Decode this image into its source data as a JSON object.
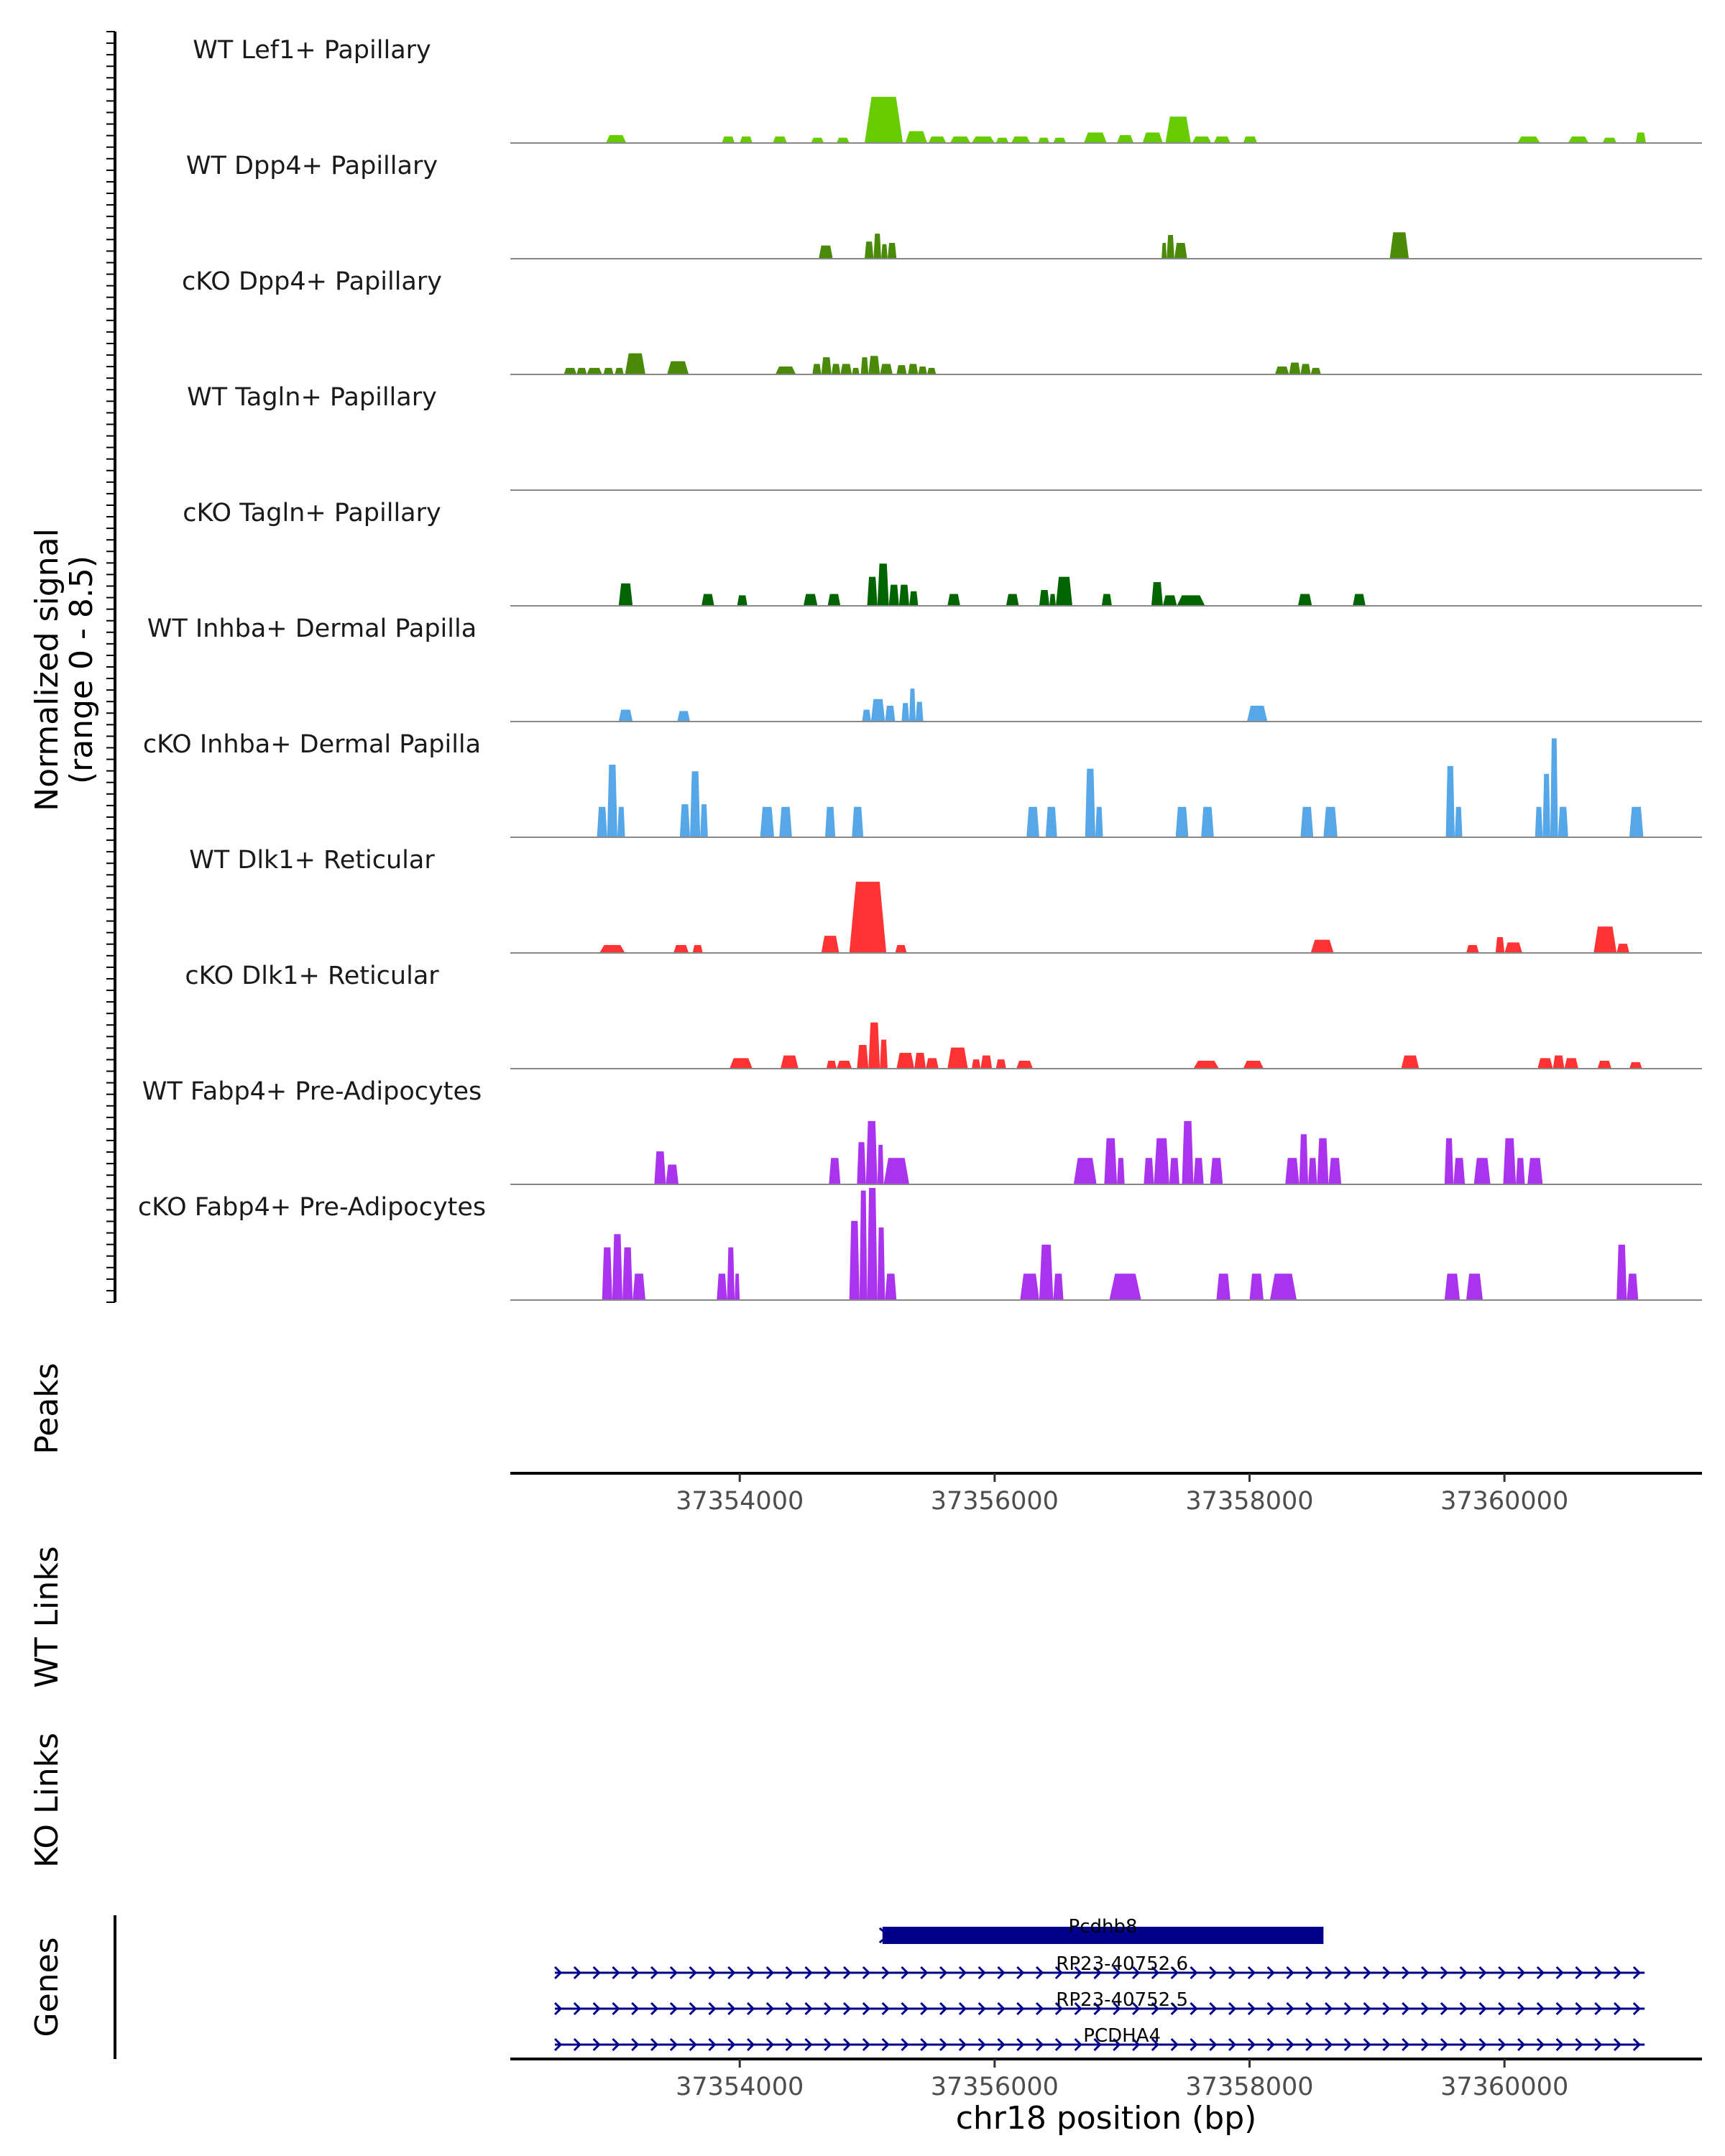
{
  "chart_data": {
    "type": "area",
    "title": "",
    "ylabel": "Normalized signal",
    "ylabel_range": "(range 0 - 8.5)",
    "ylim": [
      0,
      8.5
    ],
    "xlabel": "chr18 position (bp)",
    "xlim": [
      37352200,
      37361550
    ],
    "x_ticks": [
      37354000,
      37356000,
      37358000,
      37360000
    ],
    "x_tick_labels": [
      "37354000",
      "37356000",
      "37358000",
      "37360000"
    ],
    "side_labels": {
      "peaks": "Peaks",
      "wt_links": "WT Links",
      "ko_links": "KO Links",
      "genes": "Genes"
    },
    "series": [
      {
        "name": "WT Lef1+ Papillary",
        "color": "#66CC00",
        "peaks": [
          [
            37352950,
            37353110,
            0.6
          ],
          [
            37353860,
            37353960,
            0.5
          ],
          [
            37354000,
            37354100,
            0.5
          ],
          [
            37354260,
            37354370,
            0.5
          ],
          [
            37354560,
            37354660,
            0.4
          ],
          [
            37354760,
            37354860,
            0.4
          ],
          [
            37354980,
            37355280,
            3.5
          ],
          [
            37355300,
            37355470,
            0.9
          ],
          [
            37355480,
            37355620,
            0.5
          ],
          [
            37355650,
            37355810,
            0.5
          ],
          [
            37355820,
            37356000,
            0.5
          ],
          [
            37356010,
            37356110,
            0.4
          ],
          [
            37356130,
            37356280,
            0.5
          ],
          [
            37356340,
            37356430,
            0.4
          ],
          [
            37356460,
            37356560,
            0.4
          ],
          [
            37356700,
            37356880,
            0.8
          ],
          [
            37356960,
            37357090,
            0.6
          ],
          [
            37357160,
            37357320,
            0.8
          ],
          [
            37357340,
            37357540,
            2.0
          ],
          [
            37357550,
            37357700,
            0.5
          ],
          [
            37357720,
            37357850,
            0.5
          ],
          [
            37357950,
            37358060,
            0.5
          ],
          [
            37360100,
            37360280,
            0.5
          ],
          [
            37360500,
            37360660,
            0.5
          ],
          [
            37360770,
            37360880,
            0.4
          ],
          [
            37361030,
            37361110,
            0.8
          ]
        ]
      },
      {
        "name": "WT Dpp4+ Papillary",
        "color": "#4A8A08",
        "peaks": [
          [
            37354620,
            37354730,
            1.0
          ],
          [
            37354980,
            37355050,
            1.3
          ],
          [
            37355050,
            37355110,
            1.9
          ],
          [
            37355110,
            37355160,
            1.1
          ],
          [
            37355160,
            37355230,
            1.2
          ],
          [
            37357310,
            37357350,
            1.2
          ],
          [
            37357350,
            37357410,
            1.8
          ],
          [
            37357410,
            37357510,
            1.2
          ],
          [
            37359100,
            37359250,
            2.0
          ]
        ]
      },
      {
        "name": "cKO Dpp4+ Papillary",
        "color": "#4A8A08",
        "peaks": [
          [
            37352620,
            37352720,
            0.5
          ],
          [
            37352720,
            37352800,
            0.5
          ],
          [
            37352800,
            37352920,
            0.5
          ],
          [
            37352930,
            37353010,
            0.5
          ],
          [
            37353020,
            37353090,
            0.5
          ],
          [
            37353100,
            37353260,
            1.6
          ],
          [
            37353430,
            37353600,
            1.0
          ],
          [
            37354280,
            37354440,
            0.6
          ],
          [
            37354570,
            37354640,
            0.8
          ],
          [
            37354640,
            37354720,
            1.3
          ],
          [
            37354720,
            37354790,
            0.8
          ],
          [
            37354790,
            37354880,
            0.8
          ],
          [
            37354880,
            37354940,
            0.5
          ],
          [
            37354950,
            37355010,
            1.3
          ],
          [
            37355010,
            37355100,
            1.4
          ],
          [
            37355100,
            37355200,
            0.8
          ],
          [
            37355230,
            37355310,
            0.7
          ],
          [
            37355320,
            37355400,
            0.8
          ],
          [
            37355400,
            37355470,
            0.6
          ],
          [
            37355470,
            37355540,
            0.5
          ],
          [
            37358200,
            37358310,
            0.6
          ],
          [
            37358310,
            37358400,
            0.9
          ],
          [
            37358400,
            37358480,
            0.8
          ],
          [
            37358480,
            37358560,
            0.5
          ]
        ]
      },
      {
        "name": "WT Tagln+ Papillary",
        "color": "#2F6B0F",
        "peaks": []
      },
      {
        "name": "cKO Tagln+ Papillary",
        "color": "#006400",
        "peaks": [
          [
            37353050,
            37353160,
            1.7
          ],
          [
            37353700,
            37353800,
            0.9
          ],
          [
            37353980,
            37354060,
            0.8
          ],
          [
            37354500,
            37354610,
            0.9
          ],
          [
            37354690,
            37354790,
            0.9
          ],
          [
            37355000,
            37355080,
            2.2
          ],
          [
            37355080,
            37355170,
            3.2
          ],
          [
            37355170,
            37355250,
            1.6
          ],
          [
            37355250,
            37355330,
            1.6
          ],
          [
            37355330,
            37355400,
            1.1
          ],
          [
            37355630,
            37355730,
            0.9
          ],
          [
            37356090,
            37356190,
            0.9
          ],
          [
            37356350,
            37356430,
            1.2
          ],
          [
            37356430,
            37356480,
            0.9
          ],
          [
            37356480,
            37356610,
            2.2
          ],
          [
            37356840,
            37356920,
            0.9
          ],
          [
            37357230,
            37357320,
            1.8
          ],
          [
            37357320,
            37357430,
            0.8
          ],
          [
            37357430,
            37357650,
            0.8
          ],
          [
            37358380,
            37358490,
            0.9
          ],
          [
            37358810,
            37358910,
            0.9
          ]
        ]
      },
      {
        "name": "WT Inhba+ Dermal Papilla",
        "color": "#56A7E8",
        "peaks": [
          [
            37353050,
            37353160,
            0.9
          ],
          [
            37353510,
            37353610,
            0.8
          ],
          [
            37354960,
            37355030,
            0.9
          ],
          [
            37355030,
            37355140,
            1.7
          ],
          [
            37355140,
            37355220,
            1.2
          ],
          [
            37355270,
            37355330,
            1.4
          ],
          [
            37355330,
            37355380,
            2.5
          ],
          [
            37355380,
            37355440,
            1.5
          ],
          [
            37357980,
            37358140,
            1.2
          ]
        ]
      },
      {
        "name": "cKO Inhba+ Dermal Papilla",
        "color": "#56A7E8",
        "peaks": [
          [
            37352880,
            37352960,
            2.3
          ],
          [
            37352960,
            37353040,
            5.5
          ],
          [
            37353040,
            37353100,
            2.3
          ],
          [
            37353530,
            37353610,
            2.5
          ],
          [
            37353610,
            37353690,
            5.0
          ],
          [
            37353690,
            37353750,
            2.5
          ],
          [
            37354160,
            37354270,
            2.3
          ],
          [
            37354310,
            37354410,
            2.3
          ],
          [
            37354670,
            37354750,
            2.3
          ],
          [
            37354880,
            37354970,
            2.3
          ],
          [
            37356250,
            37356350,
            2.3
          ],
          [
            37356400,
            37356490,
            2.3
          ],
          [
            37356710,
            37356790,
            5.2
          ],
          [
            37356790,
            37356850,
            2.3
          ],
          [
            37357420,
            37357520,
            2.3
          ],
          [
            37357620,
            37357720,
            2.3
          ],
          [
            37358400,
            37358500,
            2.3
          ],
          [
            37358580,
            37358690,
            2.3
          ],
          [
            37359540,
            37359610,
            5.4
          ],
          [
            37359610,
            37359670,
            2.3
          ],
          [
            37360240,
            37360300,
            2.3
          ],
          [
            37360300,
            37360360,
            4.8
          ],
          [
            37360360,
            37360420,
            7.5
          ],
          [
            37360420,
            37360500,
            2.3
          ],
          [
            37360980,
            37361090,
            2.3
          ]
        ]
      },
      {
        "name": "WT Dlk1+ Reticular",
        "color": "#FF3333",
        "peaks": [
          [
            37352900,
            37353100,
            0.6
          ],
          [
            37353480,
            37353600,
            0.6
          ],
          [
            37353630,
            37353710,
            0.6
          ],
          [
            37354640,
            37354780,
            1.3
          ],
          [
            37354860,
            37355150,
            5.4
          ],
          [
            37355220,
            37355310,
            0.6
          ],
          [
            37358480,
            37358660,
            1.0
          ],
          [
            37359700,
            37359800,
            0.6
          ],
          [
            37359930,
            37360000,
            1.2
          ],
          [
            37360000,
            37360140,
            0.8
          ],
          [
            37360700,
            37360880,
            2.0
          ],
          [
            37360880,
            37360980,
            0.7
          ]
        ]
      },
      {
        "name": "cKO Dlk1+ Reticular",
        "color": "#FF3333",
        "peaks": [
          [
            37353920,
            37354100,
            0.8
          ],
          [
            37354320,
            37354460,
            1.0
          ],
          [
            37354680,
            37354760,
            0.6
          ],
          [
            37354760,
            37354880,
            0.6
          ],
          [
            37354920,
            37355010,
            1.8
          ],
          [
            37355010,
            37355100,
            3.5
          ],
          [
            37355100,
            37355160,
            2.2
          ],
          [
            37355230,
            37355370,
            1.2
          ],
          [
            37355370,
            37355460,
            1.2
          ],
          [
            37355460,
            37355560,
            0.8
          ],
          [
            37355630,
            37355790,
            1.6
          ],
          [
            37355820,
            37355890,
            0.7
          ],
          [
            37355890,
            37355980,
            1.0
          ],
          [
            37356010,
            37356090,
            0.7
          ],
          [
            37356170,
            37356300,
            0.6
          ],
          [
            37357560,
            37357760,
            0.6
          ],
          [
            37357950,
            37358110,
            0.6
          ],
          [
            37359190,
            37359330,
            1.0
          ],
          [
            37360260,
            37360380,
            0.8
          ],
          [
            37360380,
            37360470,
            1.0
          ],
          [
            37360470,
            37360580,
            0.8
          ],
          [
            37360730,
            37360840,
            0.6
          ],
          [
            37360980,
            37361080,
            0.5
          ]
        ]
      },
      {
        "name": "WT Fabp4+ Pre-Adipocytes",
        "color": "#AA33EE",
        "peaks": [
          [
            37353330,
            37353420,
            2.5
          ],
          [
            37353420,
            37353520,
            1.5
          ],
          [
            37354700,
            37354790,
            2.0
          ],
          [
            37354920,
            37354990,
            3.2
          ],
          [
            37354990,
            37355080,
            4.8
          ],
          [
            37355080,
            37355130,
            3.0
          ],
          [
            37355130,
            37355330,
            2.0
          ],
          [
            37356620,
            37356800,
            2.0
          ],
          [
            37356860,
            37356960,
            3.5
          ],
          [
            37356960,
            37357020,
            2.0
          ],
          [
            37357170,
            37357250,
            2.0
          ],
          [
            37357250,
            37357370,
            3.5
          ],
          [
            37357370,
            37357450,
            2.0
          ],
          [
            37357470,
            37357560,
            4.8
          ],
          [
            37357560,
            37357640,
            2.0
          ],
          [
            37357690,
            37357790,
            2.0
          ],
          [
            37358280,
            37358390,
            2.0
          ],
          [
            37358390,
            37358460,
            3.8
          ],
          [
            37358460,
            37358530,
            2.0
          ],
          [
            37358530,
            37358620,
            3.5
          ],
          [
            37358620,
            37358720,
            2.0
          ],
          [
            37359530,
            37359600,
            3.5
          ],
          [
            37359600,
            37359690,
            2.0
          ],
          [
            37359760,
            37359890,
            2.0
          ],
          [
            37359990,
            37360090,
            3.5
          ],
          [
            37360090,
            37360160,
            2.0
          ],
          [
            37360180,
            37360300,
            2.0
          ]
        ]
      },
      {
        "name": "cKO Fabp4+ Pre-Adipocytes",
        "color": "#AA33EE",
        "peaks": [
          [
            37352920,
            37353000,
            4.0
          ],
          [
            37353000,
            37353080,
            5.0
          ],
          [
            37353080,
            37353160,
            4.0
          ],
          [
            37353160,
            37353260,
            2.0
          ],
          [
            37353820,
            37353900,
            2.0
          ],
          [
            37353900,
            37353960,
            4.0
          ],
          [
            37353960,
            37354000,
            2.0
          ],
          [
            37354860,
            37354940,
            6.0
          ],
          [
            37354940,
            37355000,
            8.3
          ],
          [
            37355000,
            37355080,
            8.5
          ],
          [
            37355080,
            37355140,
            5.5
          ],
          [
            37355140,
            37355230,
            2.0
          ],
          [
            37356200,
            37356350,
            2.0
          ],
          [
            37356350,
            37356460,
            4.2
          ],
          [
            37356460,
            37356540,
            2.0
          ],
          [
            37356900,
            37357150,
            2.0
          ],
          [
            37357740,
            37357850,
            2.0
          ],
          [
            37358000,
            37358110,
            2.0
          ],
          [
            37358160,
            37358370,
            2.0
          ],
          [
            37359530,
            37359650,
            2.0
          ],
          [
            37359700,
            37359830,
            2.0
          ],
          [
            37360880,
            37360960,
            4.2
          ],
          [
            37360960,
            37361050,
            2.0
          ]
        ]
      }
    ],
    "genes": [
      {
        "name": "Pcdhb8",
        "start": 37355120,
        "end": 37358580,
        "strand": "+",
        "style": "block"
      },
      {
        "name": "RP23-40752.6",
        "start": 37352550,
        "end": 37361100,
        "strand": "+",
        "style": "line"
      },
      {
        "name": "RP23-40752.5",
        "start": 37352550,
        "end": 37361100,
        "strand": "+",
        "style": "line"
      },
      {
        "name": "PCDHA4",
        "start": 37352550,
        "end": 37361100,
        "strand": "+",
        "style": "line"
      }
    ]
  }
}
